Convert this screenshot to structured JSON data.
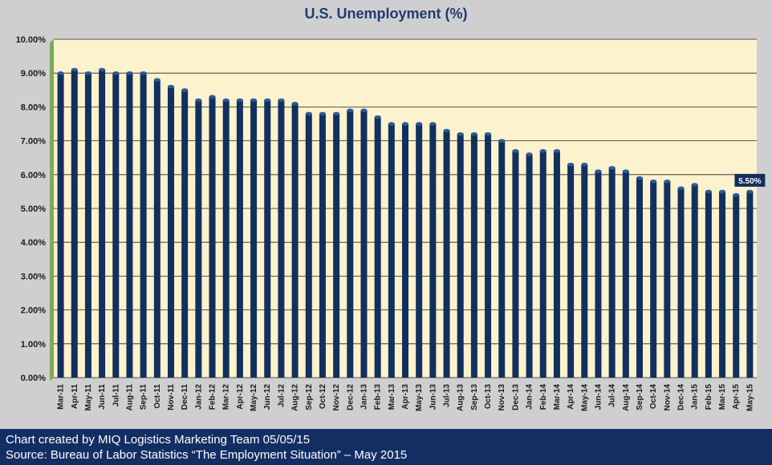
{
  "chart_data": {
    "type": "bar",
    "title": "U.S. Unemployment (%)",
    "xlabel": "",
    "ylabel": "",
    "ylim": [
      0,
      10
    ],
    "y_tick_labels": [
      "0.00%",
      "1.00%",
      "2.00%",
      "3.00%",
      "4.00%",
      "5.00%",
      "6.00%",
      "7.00%",
      "8.00%",
      "9.00%",
      "10.00%"
    ],
    "grid": true,
    "categories": [
      "Mar-11",
      "Apr-11",
      "May-11",
      "Jun-11",
      "Jul-11",
      "Aug-11",
      "Sep-11",
      "Oct-11",
      "Nov-11",
      "Dec-11",
      "Jan-12",
      "Feb-12",
      "Mar-12",
      "Apr-12",
      "May-12",
      "Jun-12",
      "Jul-12",
      "Aug-12",
      "Sep-12",
      "Oct-12",
      "Nov-12",
      "Dec-12",
      "Jan-13",
      "Feb-13",
      "Mar-13",
      "Apr-13",
      "May-13",
      "Jun-13",
      "Jul-13",
      "Aug-13",
      "Sep-13",
      "Oct-13",
      "Nov-13",
      "Dec-13",
      "Jan-14",
      "Feb-14",
      "Mar-14",
      "Apr-14",
      "May-14",
      "Jun-14",
      "Jul-14",
      "Aug-14",
      "Sep-14",
      "Oct-14",
      "Nov-14",
      "Dec-14",
      "Jan-15",
      "Feb-15",
      "Mar-15",
      "Apr-15",
      "May-15"
    ],
    "values": [
      9.0,
      9.1,
      9.0,
      9.1,
      9.0,
      9.0,
      9.0,
      8.8,
      8.6,
      8.5,
      8.2,
      8.3,
      8.2,
      8.2,
      8.2,
      8.2,
      8.2,
      8.1,
      7.8,
      7.8,
      7.8,
      7.9,
      7.9,
      7.7,
      7.5,
      7.5,
      7.5,
      7.5,
      7.3,
      7.2,
      7.2,
      7.2,
      7.0,
      6.7,
      6.6,
      6.7,
      6.7,
      6.3,
      6.3,
      6.1,
      6.2,
      6.1,
      5.9,
      5.8,
      5.8,
      5.6,
      5.7,
      5.5,
      5.5,
      5.4,
      5.5
    ],
    "data_label": "5.50%",
    "colors": {
      "bar": "#12305d",
      "plot_bg": "#fcf2cd",
      "page_bg": "#cfcfd1",
      "title": "#1f3b70",
      "footer_bg": "#132e63",
      "wall": "#7ea85a"
    }
  },
  "footer": {
    "line1": "Chart created by MIQ Logistics Marketing Team 05/05/15",
    "line2": "Source: Bureau of Labor Statistics “The Employment Situation” – May 2015"
  }
}
